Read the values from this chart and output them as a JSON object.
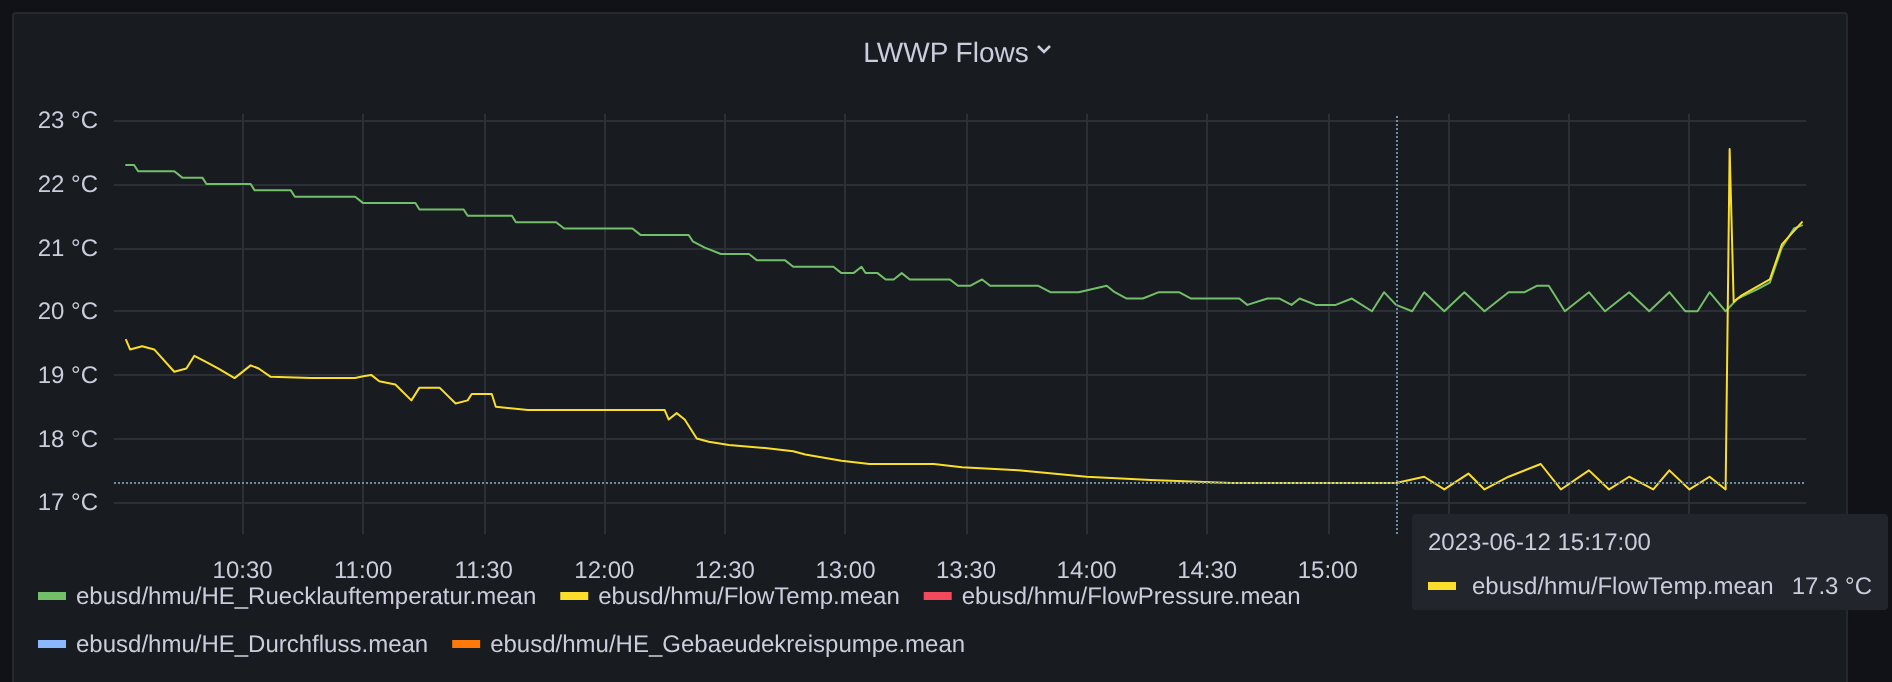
{
  "chart_data": {
    "type": "line",
    "title": "LWWP Flows",
    "xlim": [
      "2023-06-12T09:58",
      "2023-06-12T16:59"
    ],
    "xticks": [
      {
        "value": "2023-06-12T10:30",
        "label": "10:30"
      },
      {
        "value": "2023-06-12T11:00",
        "label": "11:00"
      },
      {
        "value": "2023-06-12T11:30",
        "label": "11:30"
      },
      {
        "value": "2023-06-12T12:00",
        "label": "12:00"
      },
      {
        "value": "2023-06-12T12:30",
        "label": "12:30"
      },
      {
        "value": "2023-06-12T13:00",
        "label": "13:00"
      },
      {
        "value": "2023-06-12T13:30",
        "label": "13:30"
      },
      {
        "value": "2023-06-12T14:00",
        "label": "14:00"
      },
      {
        "value": "2023-06-12T14:30",
        "label": "14:30"
      },
      {
        "value": "2023-06-12T15:00",
        "label": "15:00"
      },
      {
        "value": "2023-06-12T15:30",
        "label": null
      },
      {
        "value": "2023-06-12T16:00",
        "label": null
      },
      {
        "value": "2023-06-12T16:30",
        "label": null
      }
    ],
    "ylim": [
      16.5,
      23.1
    ],
    "yticks": [
      {
        "value": 17,
        "label": "17 °C"
      },
      {
        "value": 18,
        "label": "18 °C"
      },
      {
        "value": 19,
        "label": "19 °C"
      },
      {
        "value": 20,
        "label": "20 °C"
      },
      {
        "value": 21,
        "label": "21 °C"
      },
      {
        "value": 22,
        "label": "22 °C"
      },
      {
        "value": 23,
        "label": "23 °C"
      }
    ],
    "grid": true,
    "legend": "bottom",
    "marker": "none",
    "line_style": "solid",
    "series": [
      {
        "name": "ebusd/hmu/HE_Ruecklauftemperatur.mean",
        "color": "#73bf69",
        "x": [
          "2023-06-12T10:01",
          "2023-06-12T10:03",
          "2023-06-12T10:04",
          "2023-06-12T10:13",
          "2023-06-12T10:15",
          "2023-06-12T10:20",
          "2023-06-12T10:21",
          "2023-06-12T10:32",
          "2023-06-12T10:33",
          "2023-06-12T10:42",
          "2023-06-12T10:43",
          "2023-06-12T10:58",
          "2023-06-12T11:00",
          "2023-06-12T11:13",
          "2023-06-12T11:14",
          "2023-06-12T11:25",
          "2023-06-12T11:26",
          "2023-06-12T11:37",
          "2023-06-12T11:38",
          "2023-06-12T11:48",
          "2023-06-12T11:50",
          "2023-06-12T12:07",
          "2023-06-12T12:09",
          "2023-06-12T12:21",
          "2023-06-12T12:22",
          "2023-06-12T12:25",
          "2023-06-12T12:29",
          "2023-06-12T12:36",
          "2023-06-12T12:38",
          "2023-06-12T12:45",
          "2023-06-12T12:47",
          "2023-06-12T12:57",
          "2023-06-12T12:59",
          "2023-06-12T13:02",
          "2023-06-12T13:04",
          "2023-06-12T13:05",
          "2023-06-12T13:08",
          "2023-06-12T13:10",
          "2023-06-12T13:12",
          "2023-06-12T13:14",
          "2023-06-12T13:16",
          "2023-06-12T13:26",
          "2023-06-12T13:28",
          "2023-06-12T13:31",
          "2023-06-12T13:34",
          "2023-06-12T13:36",
          "2023-06-12T13:48",
          "2023-06-12T13:51",
          "2023-06-12T13:58",
          "2023-06-12T14:05",
          "2023-06-12T14:07",
          "2023-06-12T14:10",
          "2023-06-12T14:14",
          "2023-06-12T14:18",
          "2023-06-12T14:23",
          "2023-06-12T14:26",
          "2023-06-12T14:38",
          "2023-06-12T14:40",
          "2023-06-12T14:45",
          "2023-06-12T14:48",
          "2023-06-12T14:51",
          "2023-06-12T14:53",
          "2023-06-12T14:57",
          "2023-06-12T15:02",
          "2023-06-12T15:06",
          "2023-06-12T15:11",
          "2023-06-12T15:14",
          "2023-06-12T15:17",
          "2023-06-12T15:21",
          "2023-06-12T15:24",
          "2023-06-12T15:29",
          "2023-06-12T15:34",
          "2023-06-12T15:39",
          "2023-06-12T15:45",
          "2023-06-12T15:49",
          "2023-06-12T15:52",
          "2023-06-12T15:55",
          "2023-06-12T15:59",
          "2023-06-12T16:05",
          "2023-06-12T16:09",
          "2023-06-12T16:15",
          "2023-06-12T16:20",
          "2023-06-12T16:25",
          "2023-06-12T16:29",
          "2023-06-12T16:32",
          "2023-06-12T16:35",
          "2023-06-12T16:39",
          "2023-06-12T16:42",
          "2023-06-12T16:47",
          "2023-06-12T16:50",
          "2023-06-12T16:53",
          "2023-06-12T16:56",
          "2023-06-12T16:58"
        ],
        "values": [
          22.3,
          22.3,
          22.2,
          22.2,
          22.1,
          22.1,
          22.0,
          22.0,
          21.9,
          21.9,
          21.8,
          21.8,
          21.7,
          21.7,
          21.6,
          21.6,
          21.5,
          21.5,
          21.4,
          21.4,
          21.3,
          21.3,
          21.2,
          21.2,
          21.1,
          21.0,
          20.9,
          20.9,
          20.8,
          20.8,
          20.7,
          20.7,
          20.6,
          20.6,
          20.7,
          20.6,
          20.6,
          20.5,
          20.5,
          20.6,
          20.5,
          20.5,
          20.4,
          20.4,
          20.5,
          20.4,
          20.4,
          20.3,
          20.3,
          20.4,
          20.3,
          20.2,
          20.2,
          20.3,
          20.3,
          20.2,
          20.2,
          20.1,
          20.2,
          20.2,
          20.1,
          20.2,
          20.1,
          20.1,
          20.2,
          20.0,
          20.3,
          20.1,
          20.0,
          20.3,
          20.0,
          20.3,
          20.0,
          20.3,
          20.3,
          20.4,
          20.4,
          20.0,
          20.3,
          20.0,
          20.3,
          20.0,
          20.3,
          20.0,
          20.0,
          20.3,
          20.0,
          20.2,
          20.35,
          20.45,
          21.0,
          21.3,
          21.35
        ]
      },
      {
        "name": "ebusd/hmu/FlowTemp.mean",
        "color": "#fade2a",
        "x": [
          "2023-06-12T10:01",
          "2023-06-12T10:02",
          "2023-06-12T10:05",
          "2023-06-12T10:08",
          "2023-06-12T10:13",
          "2023-06-12T10:16",
          "2023-06-12T10:18",
          "2023-06-12T10:21",
          "2023-06-12T10:24",
          "2023-06-12T10:28",
          "2023-06-12T10:32",
          "2023-06-12T10:34",
          "2023-06-12T10:37",
          "2023-06-12T10:47",
          "2023-06-12T10:58",
          "2023-06-12T11:00",
          "2023-06-12T11:02",
          "2023-06-12T11:04",
          "2023-06-12T11:08",
          "2023-06-12T11:12",
          "2023-06-12T11:14",
          "2023-06-12T11:19",
          "2023-06-12T11:23",
          "2023-06-12T11:26",
          "2023-06-12T11:27",
          "2023-06-12T11:32",
          "2023-06-12T11:33",
          "2023-06-12T11:41",
          "2023-06-12T12:04",
          "2023-06-12T12:15",
          "2023-06-12T12:16",
          "2023-06-12T12:18",
          "2023-06-12T12:20",
          "2023-06-12T12:23",
          "2023-06-12T12:26",
          "2023-06-12T12:31",
          "2023-06-12T12:40",
          "2023-06-12T12:47",
          "2023-06-12T12:50",
          "2023-06-12T12:59",
          "2023-06-12T13:06",
          "2023-06-12T13:14",
          "2023-06-12T13:22",
          "2023-06-12T13:29",
          "2023-06-12T13:43",
          "2023-06-12T14:00",
          "2023-06-12T14:16",
          "2023-06-12T14:36",
          "2023-06-12T14:51",
          "2023-06-12T15:04",
          "2023-06-12T15:17",
          "2023-06-12T15:24",
          "2023-06-12T15:29",
          "2023-06-12T15:35",
          "2023-06-12T15:39",
          "2023-06-12T15:45",
          "2023-06-12T15:53",
          "2023-06-12T15:58",
          "2023-06-12T16:05",
          "2023-06-12T16:10",
          "2023-06-12T16:15",
          "2023-06-12T16:21",
          "2023-06-12T16:25",
          "2023-06-12T16:30",
          "2023-06-12T16:35",
          "2023-06-12T16:38",
          "2023-06-12T16:39",
          "2023-06-12T16:40",
          "2023-06-12T16:41",
          "2023-06-12T16:43",
          "2023-06-12T16:50",
          "2023-06-12T16:53",
          "2023-06-12T16:58"
        ],
        "values": [
          19.55,
          19.4,
          19.45,
          19.4,
          19.05,
          19.1,
          19.3,
          19.2,
          19.1,
          18.95,
          19.15,
          19.1,
          18.97,
          18.95,
          18.95,
          18.98,
          19.0,
          18.9,
          18.85,
          18.6,
          18.8,
          18.8,
          18.55,
          18.6,
          18.7,
          18.7,
          18.5,
          18.45,
          18.45,
          18.45,
          18.3,
          18.4,
          18.3,
          18.0,
          17.95,
          17.9,
          17.85,
          17.8,
          17.75,
          17.65,
          17.6,
          17.6,
          17.6,
          17.55,
          17.5,
          17.4,
          17.35,
          17.3,
          17.3,
          17.3,
          17.3,
          17.4,
          17.2,
          17.45,
          17.2,
          17.4,
          17.6,
          17.2,
          17.5,
          17.2,
          17.4,
          17.2,
          17.5,
          17.2,
          17.4,
          17.25,
          17.2,
          22.55,
          20.15,
          20.25,
          20.5,
          21.05,
          21.4
        ]
      },
      {
        "name": "ebusd/hmu/FlowPressure.mean",
        "color": "#f2495c"
      },
      {
        "name": "ebusd/hmu/HE_Durchfluss.mean",
        "color": "#8ab8ff"
      },
      {
        "name": "ebusd/hmu/HE_Gebaeudekreispumpe.mean",
        "color": "#ff780a"
      }
    ],
    "ref_lines": [
      {
        "axis": "x",
        "value": "2023-06-12T15:17",
        "color": "#6e8fa0",
        "line_style": "dotted"
      },
      {
        "axis": "y",
        "value": 17.3,
        "color": "#6e8fa0",
        "line_style": "dotted"
      }
    ],
    "annotations": [
      "2023-06-12 15:17:00",
      "ebusd/hmu/FlowTemp.mean",
      "17.3 °C"
    ]
  }
}
